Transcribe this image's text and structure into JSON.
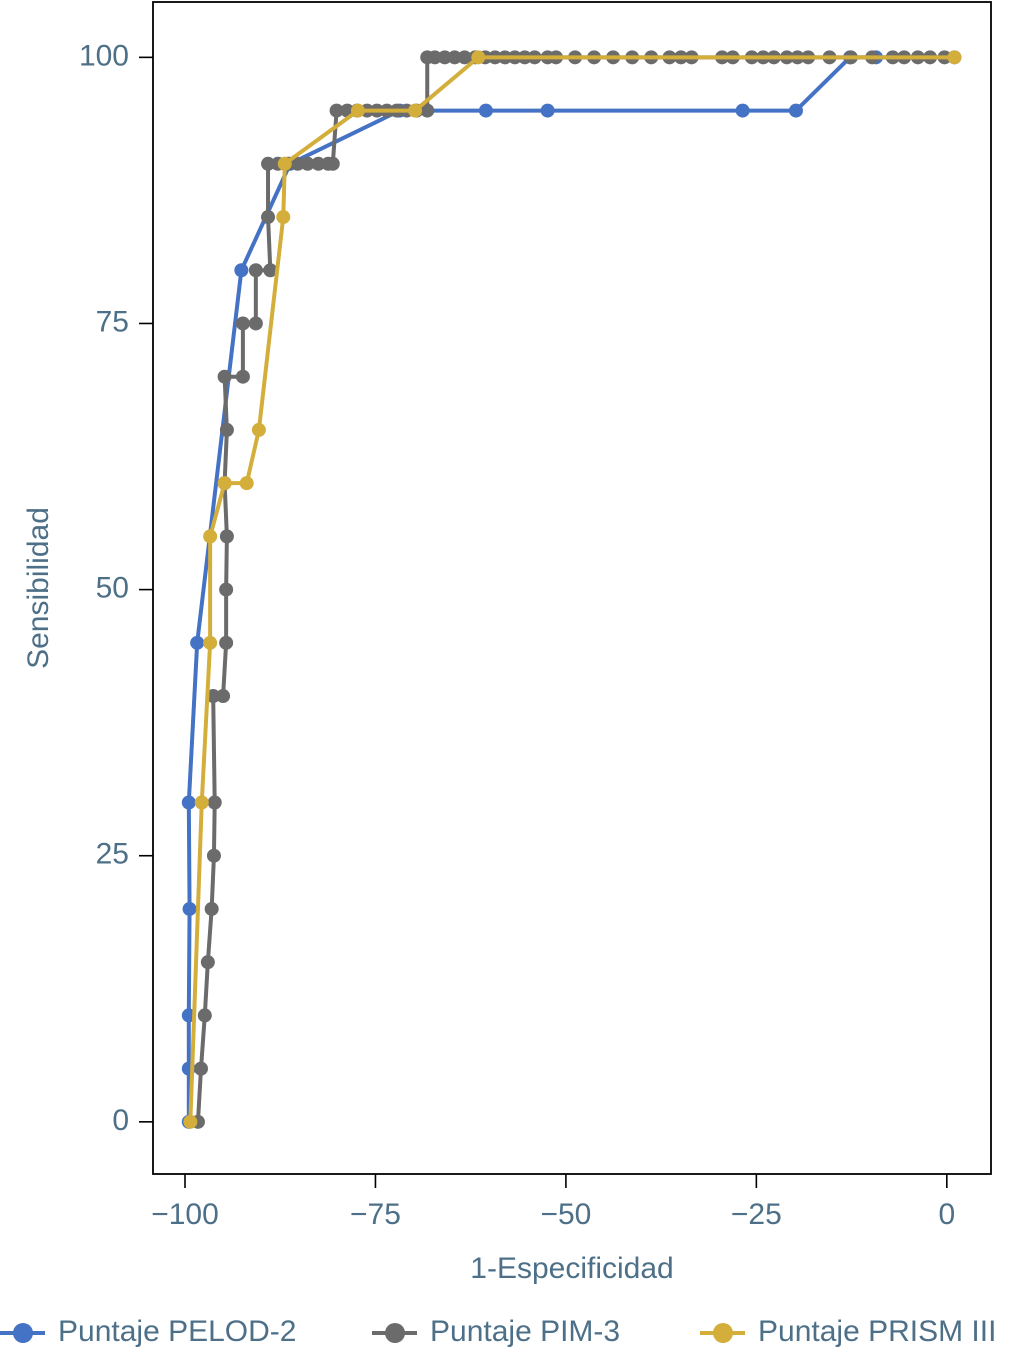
{
  "chart_data": {
    "type": "line",
    "xlabel": "1-Especificidad",
    "ylabel": "Sensibilidad",
    "xlim": [
      -104.2,
      5.8
    ],
    "ylim": [
      -4.9,
      105.2
    ],
    "xticks": [
      {
        "value": -100,
        "label": "−100"
      },
      {
        "value": -75,
        "label": "−75"
      },
      {
        "value": -50,
        "label": "−50"
      },
      {
        "value": -25,
        "label": "−25"
      },
      0
    ],
    "yticks": [
      0,
      25,
      50,
      75,
      100
    ],
    "grid": false,
    "legend": "bottom",
    "series": [
      {
        "name": "Puntaje PELOD-2",
        "color": "#4472c4",
        "x": [
          -99.5,
          -99.5,
          -99.5,
          -99.4,
          -99.5,
          -98.4,
          -92.6,
          -86.2,
          -71.8,
          -60.5,
          -52.4,
          -26.8,
          -19.8,
          -12.7,
          -9.3,
          1.0
        ],
        "values": [
          0,
          5,
          10,
          20,
          30,
          45,
          80,
          90,
          95,
          95,
          95,
          95,
          95,
          100,
          100,
          100
        ]
      },
      {
        "name": "Puntaje PIM-3",
        "color": "#6b6b6b",
        "x": [
          -98.3,
          -97.9,
          -97.4,
          -97.0,
          -96.5,
          -96.2,
          -96.1,
          -96.3,
          -95.0,
          -94.6,
          -94.6,
          -94.5,
          -94.8,
          -94.5,
          -94.8,
          -92.4,
          -92.4,
          -90.7,
          -90.7,
          -88.8,
          -89.1,
          -89.1,
          -87.8,
          -86.5,
          -85.2,
          -83.9,
          -82.5,
          -81.2,
          -80.6,
          -80.1,
          -78.7,
          -77.4,
          -76.1,
          -74.8,
          -73.5,
          -72.2,
          -70.9,
          -69.6,
          -68.2,
          -68.2,
          -67.2,
          -65.9,
          -64.6,
          -63.3,
          -61.9,
          -60.6,
          -59.3,
          -58.0,
          -56.7,
          -55.4,
          -54.1,
          -52.4,
          -51.3,
          -48.8,
          -46.3,
          -43.8,
          -41.3,
          -38.8,
          -36.4,
          -34.9,
          -33.5,
          -29.5,
          -28.1,
          -25.6,
          -24.1,
          -22.7,
          -21.0,
          -19.6,
          -18.2,
          -15.4,
          -12.6,
          -9.8,
          -7.1,
          -5.6,
          -3.8,
          -2.2,
          -0.3
        ],
        "values": [
          0,
          5,
          10,
          15,
          20,
          25,
          30,
          40,
          40,
          45,
          50,
          55,
          60,
          65,
          70,
          70,
          75,
          75,
          80,
          80,
          85,
          90,
          90,
          90,
          90,
          90,
          90,
          90,
          90,
          95,
          95,
          95,
          95,
          95,
          95,
          95,
          95,
          95,
          95,
          100,
          100,
          100,
          100,
          100,
          100,
          100,
          100,
          100,
          100,
          100,
          100,
          100,
          100,
          100,
          100,
          100,
          100,
          100,
          100,
          100,
          100,
          100,
          100,
          100,
          100,
          100,
          100,
          100,
          100,
          100,
          100,
          100,
          100,
          100,
          100,
          100,
          100
        ]
      },
      {
        "name": "Puntaje PRISM III",
        "color": "#d4ae3a",
        "x": [
          -99.3,
          -97.8,
          -96.7,
          -96.7,
          -94.8,
          -91.9,
          -90.3,
          -87.1,
          -86.9,
          -77.3,
          -69.8,
          -61.5,
          1.0
        ],
        "values": [
          0,
          30,
          45,
          55,
          60,
          60,
          65,
          85,
          90,
          95,
          95,
          100,
          100
        ]
      }
    ]
  }
}
